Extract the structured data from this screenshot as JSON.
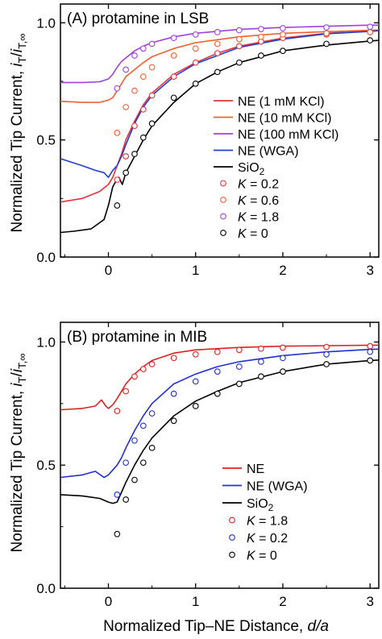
{
  "figure": {
    "ylabel_main": "Normalized Tip Current, ",
    "ylabel_i": "i",
    "ylabel_T": "T",
    "ylabel_slash": "/",
    "ylabel_i2": "i",
    "ylabel_sub2": "T,∞",
    "xlabel_main": "Normalized Tip–NE Distance, ",
    "xlabel_italic": "d/a"
  },
  "chart_data": [
    {
      "type": "line",
      "panel_title": "(A) protamine in LSB",
      "xlim": [
        -0.55,
        3.1
      ],
      "ylim": [
        0.0,
        1.08
      ],
      "xticks": [
        0,
        1,
        2,
        3
      ],
      "yticks": [
        0.0,
        0.5,
        1.0
      ],
      "xtick_labels": [
        "0",
        "1",
        "2",
        "3"
      ],
      "ytick_labels": [
        "0.0",
        "0.5",
        "1.0"
      ],
      "legend_position": "center-right",
      "series": [
        {
          "name": "NE (1 mM KCl)",
          "kind": "line",
          "color": "#e8303a",
          "x": [
            -0.55,
            -0.3,
            -0.1,
            0.0,
            0.05,
            0.1,
            0.15,
            0.2,
            0.3,
            0.4,
            0.5,
            0.75,
            1.0,
            1.25,
            1.5,
            2.0,
            2.5,
            3.0,
            3.1
          ],
          "y": [
            0.235,
            0.25,
            0.28,
            0.31,
            0.34,
            0.39,
            0.44,
            0.5,
            0.58,
            0.65,
            0.7,
            0.78,
            0.83,
            0.87,
            0.9,
            0.935,
            0.955,
            0.965,
            0.967
          ]
        },
        {
          "name": "NE (10 mM KCl)",
          "kind": "line",
          "color": "#f06030",
          "x": [
            -0.55,
            -0.3,
            -0.1,
            0.0,
            0.05,
            0.1,
            0.15,
            0.2,
            0.3,
            0.4,
            0.5,
            0.75,
            1.0,
            1.5,
            2.0,
            2.5,
            3.0,
            3.1
          ],
          "y": [
            0.665,
            0.66,
            0.66,
            0.67,
            0.68,
            0.71,
            0.74,
            0.77,
            0.8,
            0.83,
            0.855,
            0.89,
            0.915,
            0.94,
            0.955,
            0.962,
            0.968,
            0.97
          ]
        },
        {
          "name": "NE (100 mM KCl)",
          "kind": "line",
          "color": "#a040e0",
          "x": [
            -0.55,
            -0.3,
            -0.1,
            0.0,
            0.05,
            0.1,
            0.15,
            0.2,
            0.3,
            0.4,
            0.5,
            0.75,
            1.0,
            1.5,
            2.0,
            2.5,
            3.0,
            3.1
          ],
          "y": [
            0.745,
            0.745,
            0.748,
            0.76,
            0.78,
            0.81,
            0.835,
            0.85,
            0.88,
            0.9,
            0.915,
            0.94,
            0.955,
            0.972,
            0.98,
            0.985,
            0.99,
            0.99
          ]
        },
        {
          "name": "NE (WGA)",
          "kind": "line",
          "color": "#2040d0",
          "x": [
            -0.55,
            -0.3,
            -0.15,
            -0.05,
            0.0,
            0.05,
            0.1,
            0.15,
            0.2,
            0.3,
            0.4,
            0.5,
            0.75,
            1.0,
            1.5,
            2.0,
            2.5,
            3.0,
            3.1
          ],
          "y": [
            0.42,
            0.39,
            0.37,
            0.36,
            0.34,
            0.37,
            0.39,
            0.43,
            0.48,
            0.57,
            0.64,
            0.69,
            0.77,
            0.825,
            0.895,
            0.93,
            0.953,
            0.963,
            0.966
          ]
        },
        {
          "name": "SiO₂",
          "kind": "line",
          "color": "#000000",
          "x": [
            -0.55,
            -0.4,
            -0.2,
            -0.05,
            0.0,
            0.05,
            0.08,
            0.12,
            0.16,
            0.2,
            0.3,
            0.4,
            0.5,
            0.75,
            1.0,
            1.25,
            1.5,
            2.0,
            2.5,
            3.0,
            3.1
          ],
          "y": [
            0.105,
            0.11,
            0.12,
            0.16,
            0.22,
            0.3,
            0.32,
            0.34,
            0.31,
            0.36,
            0.43,
            0.5,
            0.56,
            0.66,
            0.74,
            0.79,
            0.83,
            0.88,
            0.905,
            0.922,
            0.925
          ]
        },
        {
          "name": "K = 0.2",
          "kind": "points",
          "color": "#e8303a",
          "x": [
            0.1,
            0.2,
            0.3,
            0.4,
            0.5,
            0.75,
            1.0,
            1.25,
            1.5,
            1.75,
            2.0,
            2.5,
            3.0
          ],
          "y": [
            0.33,
            0.43,
            0.56,
            0.63,
            0.69,
            0.77,
            0.83,
            0.87,
            0.9,
            0.92,
            0.935,
            0.95,
            0.96
          ]
        },
        {
          "name": "K = 0.6",
          "kind": "points",
          "color": "#f06030",
          "x": [
            0.1,
            0.2,
            0.3,
            0.4,
            0.5,
            0.75,
            1.0,
            1.25,
            1.5,
            1.75,
            2.0,
            2.5,
            3.0
          ],
          "y": [
            0.53,
            0.64,
            0.71,
            0.77,
            0.81,
            0.86,
            0.89,
            0.91,
            0.93,
            0.94,
            0.95,
            0.955,
            0.96
          ]
        },
        {
          "name": "K = 1.8",
          "kind": "points",
          "color": "#a040e0",
          "x": [
            0.1,
            0.2,
            0.3,
            0.4,
            0.5,
            0.75,
            1.0,
            1.25,
            1.5,
            1.75,
            2.0,
            2.5,
            3.0
          ],
          "y": [
            0.72,
            0.8,
            0.86,
            0.89,
            0.91,
            0.935,
            0.95,
            0.96,
            0.968,
            0.973,
            0.977,
            0.98,
            0.983
          ]
        },
        {
          "name": "K = 0",
          "kind": "points",
          "color": "#000000",
          "x": [
            0.1,
            0.2,
            0.3,
            0.4,
            0.5,
            0.75,
            1.0,
            1.25,
            1.5,
            1.75,
            2.0,
            2.5,
            3.0
          ],
          "y": [
            0.22,
            0.36,
            0.44,
            0.51,
            0.57,
            0.68,
            0.74,
            0.79,
            0.83,
            0.86,
            0.88,
            0.91,
            0.925
          ]
        }
      ],
      "legend": [
        {
          "label": "NE (1 mM KCl)",
          "kind": "line",
          "color": "#e8303a"
        },
        {
          "label": "NE (10 mM KCl)",
          "kind": "line",
          "color": "#f06030"
        },
        {
          "label": "NE (100 mM KCl)",
          "kind": "line",
          "color": "#a040e0"
        },
        {
          "label": "NE (WGA)",
          "kind": "line",
          "color": "#2040d0"
        },
        {
          "label": "SiO₂",
          "kind": "line",
          "color": "#000000"
        },
        {
          "label": "K = 0.2",
          "kind": "points",
          "color": "#e8303a"
        },
        {
          "label": "K = 0.6",
          "kind": "points",
          "color": "#f06030"
        },
        {
          "label": "K = 1.8",
          "kind": "points",
          "color": "#a040e0"
        },
        {
          "label": "K = 0",
          "kind": "points",
          "color": "#000000"
        }
      ]
    },
    {
      "type": "line",
      "panel_title": "(B) protamine in MIB",
      "xlim": [
        -0.55,
        3.1
      ],
      "ylim": [
        0.0,
        1.08
      ],
      "xticks": [
        0,
        1,
        2,
        3
      ],
      "yticks": [
        0.0,
        0.5,
        1.0
      ],
      "xtick_labels": [
        "0",
        "1",
        "2",
        "3"
      ],
      "ytick_labels": [
        "0.0",
        "0.5",
        "1.0"
      ],
      "legend_position": "lower-right",
      "series": [
        {
          "name": "NE",
          "kind": "line",
          "color": "#e02020",
          "x": [
            -0.55,
            -0.3,
            -0.15,
            -0.08,
            -0.03,
            0.0,
            0.05,
            0.1,
            0.15,
            0.2,
            0.3,
            0.4,
            0.5,
            0.75,
            1.0,
            1.5,
            2.0,
            2.5,
            3.0,
            3.1
          ],
          "y": [
            0.725,
            0.73,
            0.74,
            0.765,
            0.74,
            0.73,
            0.745,
            0.77,
            0.8,
            0.83,
            0.87,
            0.9,
            0.925,
            0.955,
            0.968,
            0.978,
            0.983,
            0.985,
            0.987,
            0.987
          ]
        },
        {
          "name": "NE (WGA)",
          "kind": "line",
          "color": "#2030d0",
          "x": [
            -0.55,
            -0.3,
            -0.15,
            -0.05,
            0.0,
            0.05,
            0.1,
            0.15,
            0.2,
            0.3,
            0.4,
            0.5,
            0.75,
            1.0,
            1.25,
            1.5,
            2.0,
            2.5,
            3.0,
            3.1
          ],
          "y": [
            0.45,
            0.46,
            0.475,
            0.45,
            0.46,
            0.48,
            0.5,
            0.53,
            0.57,
            0.64,
            0.7,
            0.75,
            0.83,
            0.87,
            0.9,
            0.92,
            0.945,
            0.96,
            0.97,
            0.971
          ]
        },
        {
          "name": "SiO₂",
          "kind": "line",
          "color": "#000000",
          "x": [
            -0.55,
            -0.3,
            -0.1,
            0.0,
            0.05,
            0.1,
            0.15,
            0.2,
            0.3,
            0.4,
            0.5,
            0.75,
            1.0,
            1.25,
            1.5,
            2.0,
            2.5,
            3.0,
            3.1
          ],
          "y": [
            0.38,
            0.375,
            0.365,
            0.35,
            0.345,
            0.35,
            0.39,
            0.43,
            0.5,
            0.56,
            0.61,
            0.7,
            0.76,
            0.8,
            0.835,
            0.88,
            0.91,
            0.925,
            0.927
          ]
        },
        {
          "name": "K = 1.8",
          "kind": "points",
          "color": "#e02020",
          "x": [
            0.1,
            0.2,
            0.3,
            0.4,
            0.5,
            0.75,
            1.0,
            1.25,
            1.5,
            1.75,
            2.0,
            2.5,
            3.0
          ],
          "y": [
            0.72,
            0.8,
            0.86,
            0.89,
            0.91,
            0.935,
            0.95,
            0.96,
            0.968,
            0.973,
            0.977,
            0.98,
            0.983
          ]
        },
        {
          "name": "K = 0.2",
          "kind": "points",
          "color": "#2030d0",
          "x": [
            0.1,
            0.2,
            0.3,
            0.4,
            0.5,
            0.75,
            1.0,
            1.25,
            1.5,
            1.75,
            2.0,
            2.5,
            3.0
          ],
          "y": [
            0.38,
            0.51,
            0.6,
            0.66,
            0.71,
            0.79,
            0.84,
            0.88,
            0.9,
            0.92,
            0.935,
            0.95,
            0.96
          ]
        },
        {
          "name": "K = 0",
          "kind": "points",
          "color": "#000000",
          "x": [
            0.1,
            0.2,
            0.3,
            0.4,
            0.5,
            0.75,
            1.0,
            1.25,
            1.5,
            1.75,
            2.0,
            2.5,
            3.0
          ],
          "y": [
            0.22,
            0.36,
            0.44,
            0.51,
            0.57,
            0.68,
            0.74,
            0.79,
            0.83,
            0.86,
            0.88,
            0.91,
            0.925
          ]
        }
      ],
      "legend": [
        {
          "label": "NE",
          "kind": "line",
          "color": "#e02020"
        },
        {
          "label": "NE (WGA)",
          "kind": "line",
          "color": "#2030d0"
        },
        {
          "label": "SiO₂",
          "kind": "line",
          "color": "#000000"
        },
        {
          "label": "K = 1.8",
          "kind": "points",
          "color": "#e02020"
        },
        {
          "label": "K = 0.2",
          "kind": "points",
          "color": "#2030d0"
        },
        {
          "label": "K = 0",
          "kind": "points",
          "color": "#000000"
        }
      ]
    }
  ]
}
